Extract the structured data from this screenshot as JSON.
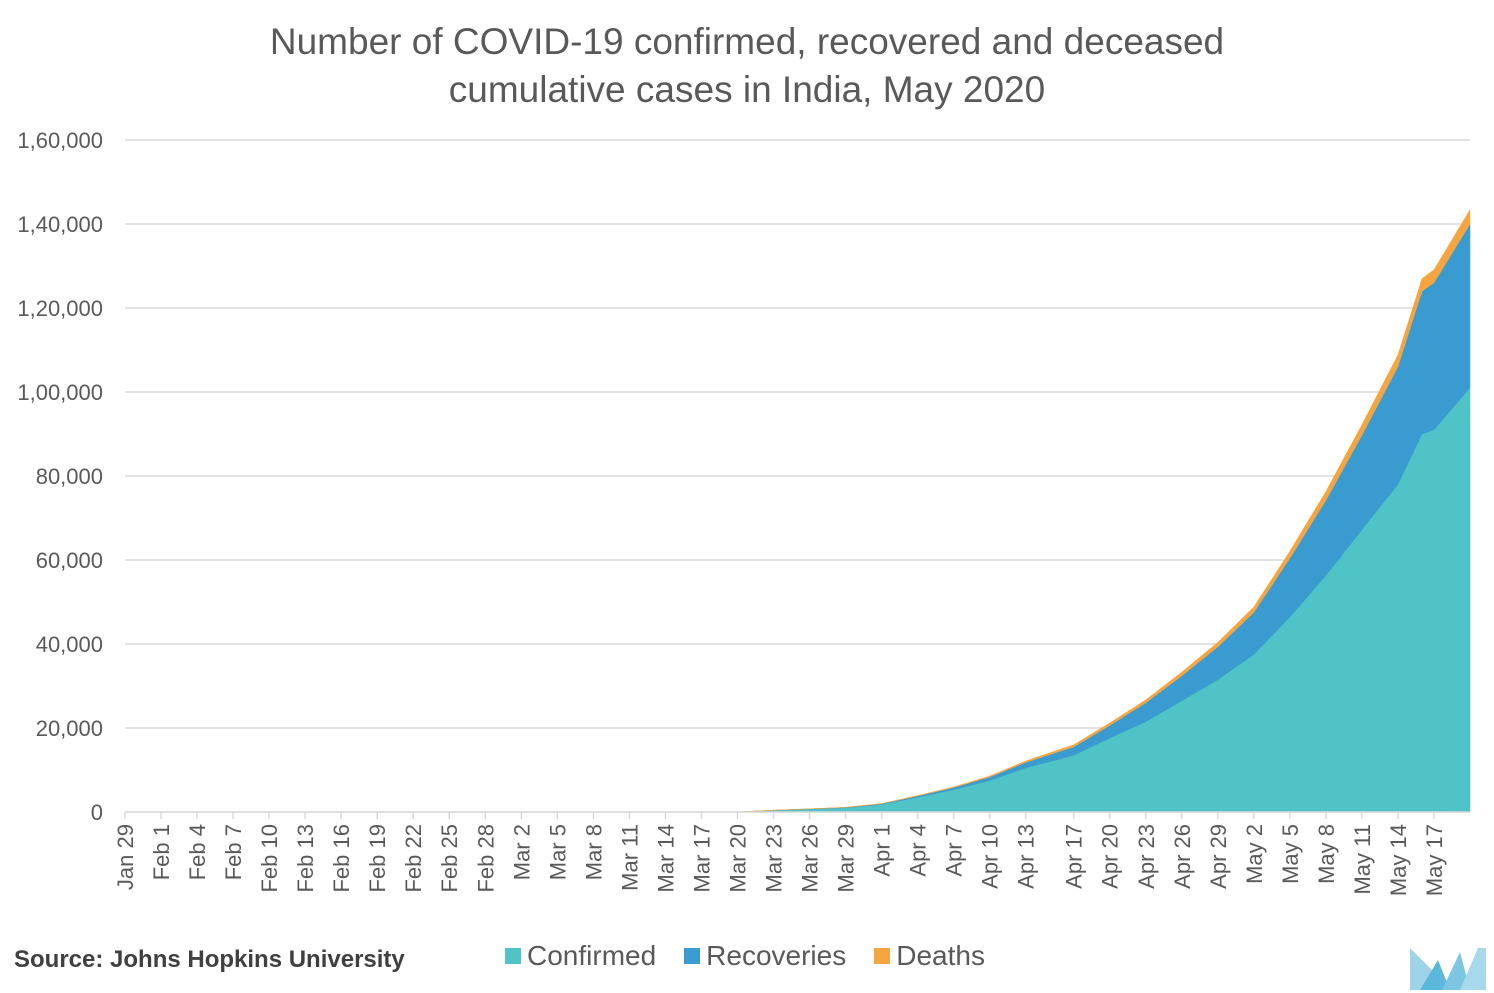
{
  "title_line1": "Number of COVID-19 confirmed, recovered and deceased",
  "title_line2": "cumulative cases in India, May 2020",
  "source": "Source: Johns Hopkins University",
  "colors": {
    "confirmed": "#4FC3C6",
    "recoveries": "#3A9BD1",
    "deaths": "#F4A540",
    "grid": "#D9D9D9",
    "axis_text": "#595959"
  },
  "chart_data": {
    "type": "area",
    "stacked": true,
    "title": "Number of COVID-19 confirmed, recovered and deceased cumulative cases in India, May 2020",
    "ylim": [
      0,
      160000
    ],
    "y_ticks": [
      0,
      20000,
      40000,
      60000,
      80000,
      100000,
      120000,
      140000,
      160000
    ],
    "y_tick_labels": [
      "0",
      "20,000",
      "40,000",
      "60,000",
      "80,000",
      "1,00,000",
      "1,20,000",
      "1,40,000",
      "1,60,000"
    ],
    "x_tick_labels": [
      "Jan 29",
      "Feb 1",
      "Feb 4",
      "Feb 7",
      "Feb 10",
      "Feb 13",
      "Feb 16",
      "Feb 19",
      "Feb 22",
      "Feb 25",
      "Feb 28",
      "Mar 2",
      "Mar 5",
      "Mar 8",
      "Mar 11",
      "Mar 14",
      "Mar 17",
      "Mar 20",
      "Mar 23",
      "Mar 26",
      "Mar 29",
      "Apr 1",
      "Apr 4",
      "Apr 7",
      "Apr 10",
      "Apr 13",
      "Apr 17",
      "Apr 20",
      "Apr 23",
      "Apr 26",
      "Apr 29",
      "May 2",
      "May 5",
      "May 8",
      "May 11",
      "May 14",
      "May 17"
    ],
    "grid": true,
    "legend_position": "bottom",
    "series": [
      {
        "name": "Confirmed",
        "points": [
          [
            "Jan 29",
            0
          ],
          [
            "Mar 20",
            0
          ],
          [
            "Mar 23",
            400
          ],
          [
            "Mar 26",
            700
          ],
          [
            "Mar 29",
            1000
          ],
          [
            "Apr 1",
            1800
          ],
          [
            "Apr 4",
            3500
          ],
          [
            "Apr 7",
            5300
          ],
          [
            "Apr 10",
            7500
          ],
          [
            "Apr 13",
            10500
          ],
          [
            "Apr 17",
            13500
          ],
          [
            "Apr 20",
            17600
          ],
          [
            "Apr 23",
            21500
          ],
          [
            "Apr 26",
            26500
          ],
          [
            "Apr 29",
            31500
          ],
          [
            "May 2",
            37500
          ],
          [
            "May 5",
            46400
          ],
          [
            "May 8",
            56300
          ],
          [
            "May 11",
            67200
          ],
          [
            "May 14",
            78000
          ],
          [
            "May 16",
            90000
          ],
          [
            "May 17",
            91000
          ],
          [
            "May 20",
            101000
          ]
        ]
      },
      {
        "name": "Recoveries",
        "points": [
          [
            "Jan 29",
            0
          ],
          [
            "Mar 20",
            0
          ],
          [
            "Mar 23",
            20
          ],
          [
            "Mar 26",
            50
          ],
          [
            "Mar 29",
            100
          ],
          [
            "Apr 1",
            150
          ],
          [
            "Apr 4",
            300
          ],
          [
            "Apr 7",
            500
          ],
          [
            "Apr 10",
            800
          ],
          [
            "Apr 13",
            1300
          ],
          [
            "Apr 17",
            2000
          ],
          [
            "Apr 20",
            3000
          ],
          [
            "Apr 23",
            4500
          ],
          [
            "Apr 26",
            5900
          ],
          [
            "Apr 29",
            7800
          ],
          [
            "May 2",
            10000
          ],
          [
            "May 5",
            14000
          ],
          [
            "May 8",
            17900
          ],
          [
            "May 11",
            22500
          ],
          [
            "May 14",
            28000
          ],
          [
            "May 16",
            34000
          ],
          [
            "May 17",
            35000
          ],
          [
            "May 20",
            39000
          ]
        ]
      },
      {
        "name": "Deaths",
        "points": [
          [
            "Jan 29",
            0
          ],
          [
            "Mar 20",
            0
          ],
          [
            "Mar 23",
            10
          ],
          [
            "Mar 26",
            20
          ],
          [
            "Mar 29",
            30
          ],
          [
            "Apr 1",
            50
          ],
          [
            "Apr 4",
            100
          ],
          [
            "Apr 7",
            160
          ],
          [
            "Apr 10",
            240
          ],
          [
            "Apr 13",
            350
          ],
          [
            "Apr 17",
            500
          ],
          [
            "Apr 20",
            600
          ],
          [
            "Apr 23",
            700
          ],
          [
            "Apr 26",
            900
          ],
          [
            "Apr 29",
            1100
          ],
          [
            "May 2",
            1300
          ],
          [
            "May 5",
            1700
          ],
          [
            "May 8",
            2100
          ],
          [
            "May 11",
            2500
          ],
          [
            "May 14",
            2800
          ],
          [
            "May 16",
            3000
          ],
          [
            "May 17",
            3100
          ],
          [
            "May 20",
            3400
          ]
        ]
      }
    ]
  }
}
